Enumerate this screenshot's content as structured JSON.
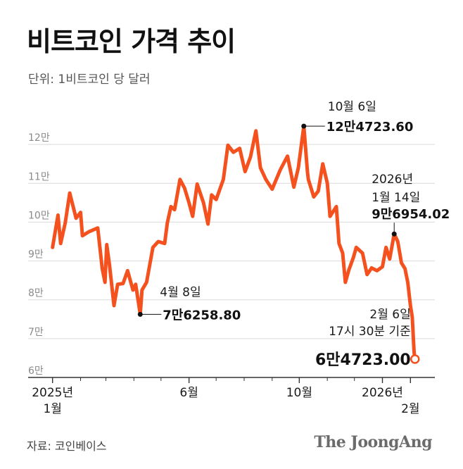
{
  "header": {
    "title": "비트코인 가격 추이",
    "unit": "단위: 1비트코인 당 달러"
  },
  "footer": {
    "source": "자료: 코인베이스",
    "brand": "The JoongAng"
  },
  "colors": {
    "line": "#f4511e",
    "gridline": "#d9d9d9",
    "axis": "#333333"
  },
  "chart_data": {
    "type": "line",
    "title": "비트코인 가격 추이",
    "ylabel": "",
    "xlabel": "",
    "ylim": [
      60000,
      130000
    ],
    "yticks": [
      {
        "value": 60000,
        "label": "6만"
      },
      {
        "value": 70000,
        "label": "7만"
      },
      {
        "value": 80000,
        "label": "8만"
      },
      {
        "value": 90000,
        "label": "9만"
      },
      {
        "value": 100000,
        "label": "10만"
      },
      {
        "value": 110000,
        "label": "11만"
      },
      {
        "value": 120000,
        "label": "12만"
      }
    ],
    "xticks": [
      {
        "date": "2025-01-01",
        "line1": "2025년",
        "line2": "1월"
      },
      {
        "date": "2025-06-01",
        "line1": "6월",
        "line2": ""
      },
      {
        "date": "2025-10-01",
        "line1": "10월",
        "line2": ""
      },
      {
        "date": "2026-01-01",
        "line1": "2026년",
        "line2": ""
      },
      {
        "date": "2026-02-01",
        "line1": "",
        "line2": "2월"
      }
    ],
    "xminor": [
      "2025-02-01",
      "2025-03-01",
      "2025-04-01",
      "2025-05-01",
      "2025-07-01",
      "2025-08-01",
      "2025-09-01",
      "2025-11-01",
      "2025-12-01"
    ],
    "xrange": [
      "2024-12-05",
      "2026-02-28"
    ],
    "series": [
      {
        "points": [
          [
            "2025-01-01",
            93500
          ],
          [
            "2025-01-07",
            101800
          ],
          [
            "2025-01-10",
            94500
          ],
          [
            "2025-01-15",
            99800
          ],
          [
            "2025-01-20",
            107500
          ],
          [
            "2025-01-27",
            101000
          ],
          [
            "2025-02-01",
            102500
          ],
          [
            "2025-02-03",
            96500
          ],
          [
            "2025-02-10",
            97500
          ],
          [
            "2025-02-20",
            98500
          ],
          [
            "2025-02-25",
            88000
          ],
          [
            "2025-02-28",
            84500
          ],
          [
            "2025-03-02",
            94200
          ],
          [
            "2025-03-05",
            89000
          ],
          [
            "2025-03-10",
            78500
          ],
          [
            "2025-03-14",
            84000
          ],
          [
            "2025-03-20",
            84200
          ],
          [
            "2025-03-25",
            87500
          ],
          [
            "2025-03-31",
            82500
          ],
          [
            "2025-04-03",
            84000
          ],
          [
            "2025-04-08",
            76258.8
          ],
          [
            "2025-04-10",
            82500
          ],
          [
            "2025-04-15",
            84500
          ],
          [
            "2025-04-22",
            93500
          ],
          [
            "2025-04-28",
            95000
          ],
          [
            "2025-05-05",
            94500
          ],
          [
            "2025-05-08",
            99800
          ],
          [
            "2025-05-12",
            104000
          ],
          [
            "2025-05-16",
            103200
          ],
          [
            "2025-05-22",
            111000
          ],
          [
            "2025-05-27",
            108800
          ],
          [
            "2025-06-01",
            105000
          ],
          [
            "2025-06-05",
            101500
          ],
          [
            "2025-06-10",
            109800
          ],
          [
            "2025-06-17",
            105000
          ],
          [
            "2025-06-22",
            99500
          ],
          [
            "2025-06-26",
            107000
          ],
          [
            "2025-07-01",
            105800
          ],
          [
            "2025-07-09",
            111000
          ],
          [
            "2025-07-14",
            119800
          ],
          [
            "2025-07-20",
            118000
          ],
          [
            "2025-07-27",
            119000
          ],
          [
            "2025-08-02",
            113000
          ],
          [
            "2025-08-08",
            116800
          ],
          [
            "2025-08-14",
            123500
          ],
          [
            "2025-08-19",
            114000
          ],
          [
            "2025-08-25",
            111000
          ],
          [
            "2025-09-01",
            108500
          ],
          [
            "2025-09-10",
            113500
          ],
          [
            "2025-09-18",
            117000
          ],
          [
            "2025-09-25",
            109000
          ],
          [
            "2025-09-30",
            114000
          ],
          [
            "2025-10-06",
            124723.6
          ],
          [
            "2025-10-10",
            113000
          ],
          [
            "2025-10-11",
            111000
          ],
          [
            "2025-10-17",
            106500
          ],
          [
            "2025-10-22",
            108000
          ],
          [
            "2025-10-27",
            115000
          ],
          [
            "2025-11-01",
            110000
          ],
          [
            "2025-11-04",
            101500
          ],
          [
            "2025-11-11",
            104000
          ],
          [
            "2025-11-14",
            94500
          ],
          [
            "2025-11-18",
            92000
          ],
          [
            "2025-11-21",
            84500
          ],
          [
            "2025-11-25",
            87800
          ],
          [
            "2025-11-30",
            91000
          ],
          [
            "2025-12-03",
            93500
          ],
          [
            "2025-12-10",
            92000
          ],
          [
            "2025-12-15",
            86500
          ],
          [
            "2025-12-20",
            88200
          ],
          [
            "2025-12-26",
            87500
          ],
          [
            "2026-01-01",
            88500
          ],
          [
            "2026-01-05",
            93500
          ],
          [
            "2026-01-09",
            90500
          ],
          [
            "2026-01-14",
            96954.02
          ],
          [
            "2026-01-18",
            95000
          ],
          [
            "2026-01-22",
            89500
          ],
          [
            "2026-01-26",
            88000
          ],
          [
            "2026-01-29",
            84500
          ],
          [
            "2026-02-01",
            78500
          ],
          [
            "2026-02-03",
            75500
          ],
          [
            "2026-02-05",
            66500
          ],
          [
            "2026-02-06",
            64723.0
          ]
        ]
      }
    ],
    "annotations": [
      {
        "date": "2025-04-08",
        "value": 76258.8,
        "lines": [
          "4월 8일"
        ],
        "value_label": "7만6258.80",
        "style": "dot"
      },
      {
        "date": "2025-10-06",
        "value": 124723.6,
        "lines": [
          "10월 6일"
        ],
        "value_label": "12만4723.60",
        "style": "dot"
      },
      {
        "date": "2026-01-14",
        "value": 96954.02,
        "lines": [
          "2026년",
          "1월 14일"
        ],
        "value_label": "9만6954.02",
        "style": "dot"
      },
      {
        "date": "2026-02-06",
        "value": 64723.0,
        "lines": [
          "2월 6일",
          "17시 30분 기준"
        ],
        "value_label": "6만4723.00",
        "style": "ring"
      }
    ]
  }
}
